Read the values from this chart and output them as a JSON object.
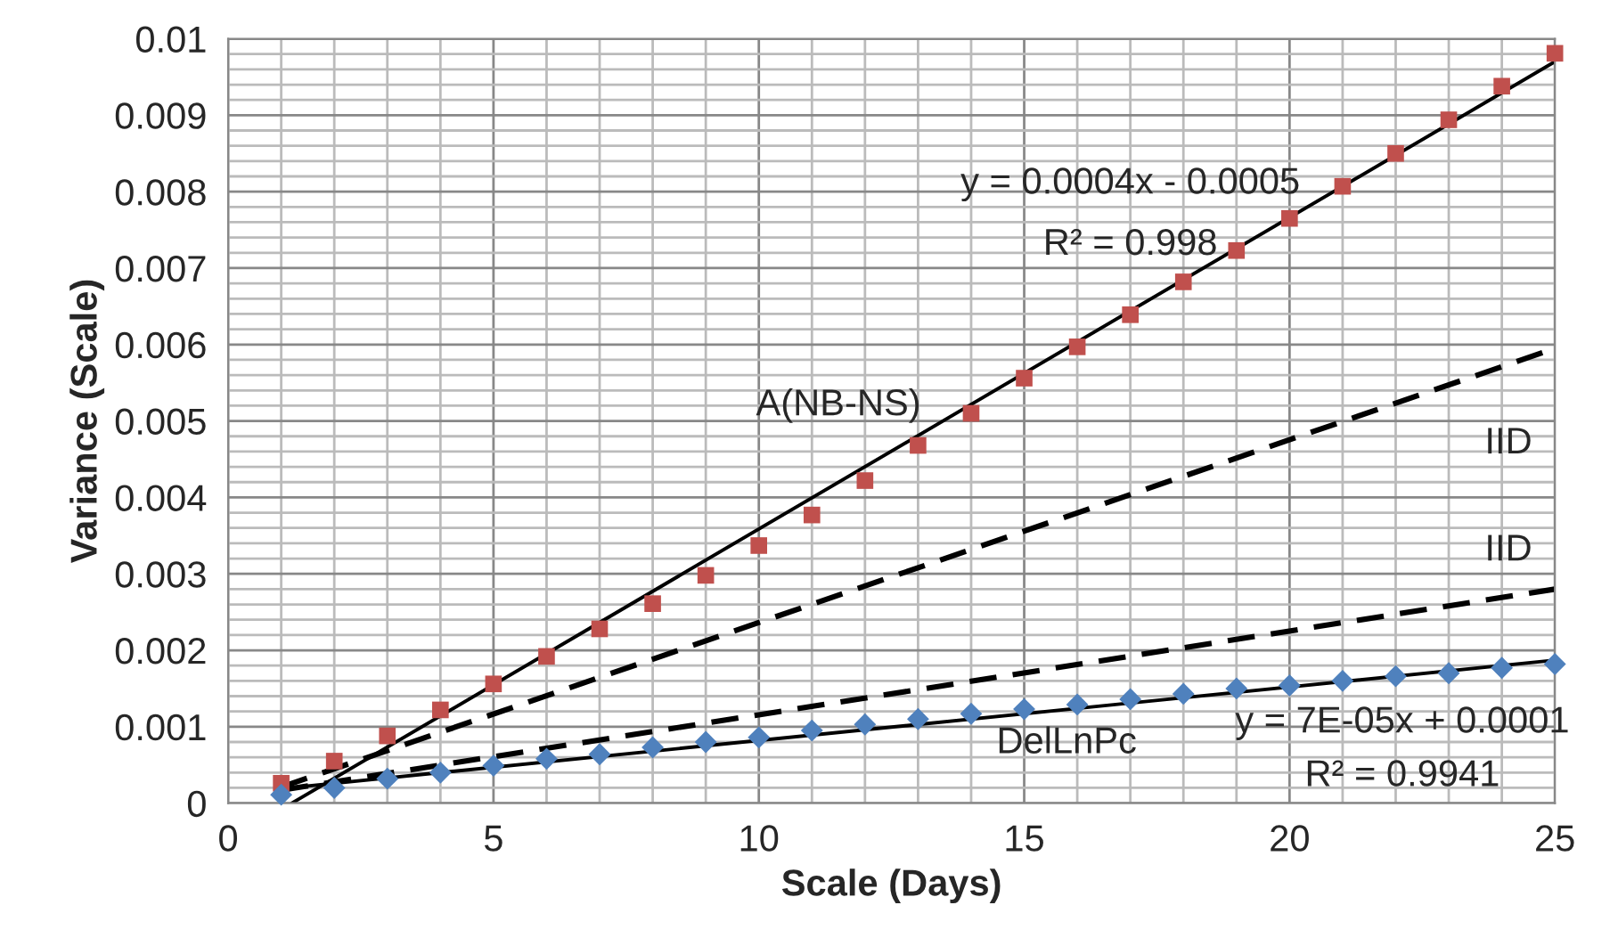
{
  "chart_data": {
    "type": "scatter",
    "xlabel": "Scale (Days)",
    "ylabel": "Variance (Scale)",
    "x": [
      1,
      2,
      3,
      4,
      5,
      6,
      7,
      8,
      9,
      10,
      11,
      12,
      13,
      14,
      15,
      16,
      17,
      18,
      19,
      20,
      21,
      22,
      23,
      24,
      25
    ],
    "series": [
      {
        "color": "#c0504d",
        "marker": "square",
        "values": [
          0.00026,
          0.00055,
          0.00088,
          0.00122,
          0.00156,
          0.00192,
          0.00228,
          0.00261,
          0.00298,
          0.00337,
          0.00377,
          0.00422,
          0.00468,
          0.0051,
          0.00556,
          0.00597,
          0.00639,
          0.00682,
          0.00723,
          0.00765,
          0.00807,
          0.0085,
          0.00894,
          0.00938,
          0.00981
        ]
      },
      {
        "color": "#4f81bd",
        "marker": "diamond",
        "values": [
          0.00011,
          0.0002,
          0.00032,
          0.0004,
          0.00049,
          0.00058,
          0.00064,
          0.00073,
          0.0008,
          0.00086,
          0.00095,
          0.00103,
          0.0011,
          0.00117,
          0.00123,
          0.00129,
          0.00136,
          0.00143,
          0.0015,
          0.00154,
          0.0016,
          0.00166,
          0.0017,
          0.00177,
          0.00182
        ]
      },
      {
        "type": "line",
        "color": "#000000",
        "line_style": "solid",
        "x": [
          1.2,
          25
        ],
        "values": [
          0,
          0.0097
        ]
      },
      {
        "type": "line",
        "color": "#000000",
        "line_style": "solid",
        "x": [
          1,
          25
        ],
        "values": [
          0.00019,
          0.00187
        ]
      },
      {
        "type": "line",
        "color": "#000000",
        "line_style": "dashed",
        "x": [
          1,
          25
        ],
        "values": [
          0.00021,
          0.00595
        ]
      },
      {
        "type": "line",
        "color": "#000000",
        "line_style": "dashed",
        "x": [
          1,
          25
        ],
        "values": [
          0.00017,
          0.0028
        ]
      }
    ],
    "xlim": [
      0,
      25
    ],
    "xticks": [
      0,
      5,
      10,
      15,
      20,
      25
    ],
    "ylim": [
      0,
      0.01
    ],
    "yticks": [
      0,
      0.001,
      0.002,
      0.003,
      0.004,
      0.005,
      0.006,
      0.007,
      0.008,
      0.009,
      0.01
    ],
    "grid": true,
    "annotations": [
      "y = 0.0004x - 0.0005",
      "R² = 0.998",
      "A(NB-NS)",
      "IID",
      "IID",
      "DelLnPc",
      "y = 7E-05x + 0.0001",
      "R² = 0.9941"
    ]
  }
}
